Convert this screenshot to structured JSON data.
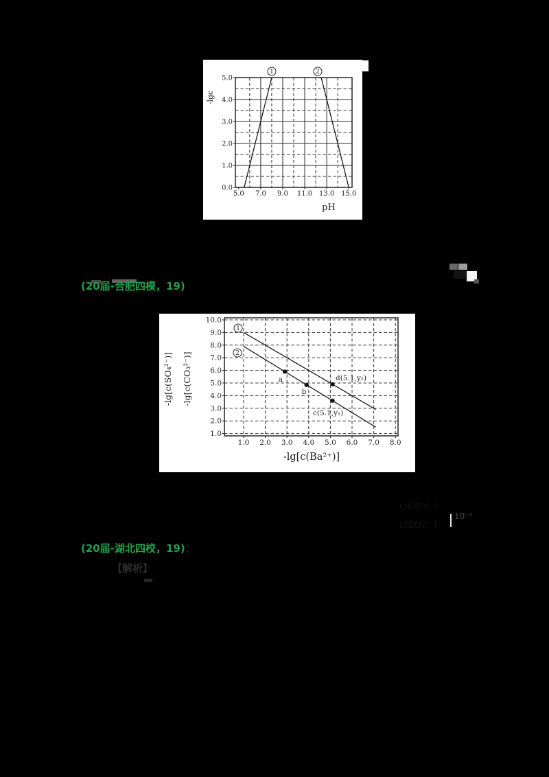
{
  "page": {
    "background": "#000000"
  },
  "annotations": {
    "green": "#22A04D",
    "source1": "(20届-合肥四模，19)",
    "source2": "(20届-湖北四校，19)",
    "source2_suffix": "：",
    "faint_heading": "【解析】",
    "frag2_numerator": "c(CO₃²⁻)",
    "frag2_denominator": "c(SO₄²⁻)",
    "frag2_right": "10⁻²"
  },
  "chart_data": [
    {
      "id": "chart1",
      "type": "line",
      "title": "",
      "xlabel": "pH",
      "ylabels": [
        "-lgc"
      ],
      "xlim": [
        4.7,
        15.3
      ],
      "ylim": [
        0,
        5
      ],
      "grid_on": true,
      "x_ticks": [
        {
          "v": 5.0,
          "label": "5.0"
        },
        {
          "v": 7.0,
          "label": "7.0"
        },
        {
          "v": 9.0,
          "label": "9.0"
        },
        {
          "v": 11.0,
          "label": "11.0"
        },
        {
          "v": 13.0,
          "label": "13.0"
        },
        {
          "v": 15.0,
          "label": "15.0"
        }
      ],
      "y_ticks": [
        {
          "v": 0.0,
          "label": "0.0"
        },
        {
          "v": 1.0,
          "label": "1.0"
        },
        {
          "v": 2.0,
          "label": "2.0"
        },
        {
          "v": 3.0,
          "label": "3.0"
        },
        {
          "v": 4.0,
          "label": "4.0"
        },
        {
          "v": 5.0,
          "label": "5.0"
        }
      ],
      "grid": {
        "x_solid": [
          7,
          9,
          11,
          13
        ],
        "x_dashed": [
          6,
          8,
          10,
          12,
          14
        ],
        "y_solid": [
          1,
          2,
          3,
          4
        ],
        "y_dashed": [
          0.5,
          1.5,
          2.5,
          3.5,
          4.5
        ]
      },
      "series": [
        {
          "name": "line-1",
          "points": [
            [
              5.5,
              0.0
            ],
            [
              8.0,
              5.0
            ]
          ]
        },
        {
          "name": "line-2",
          "points": [
            [
              12.5,
              5.0
            ],
            [
              15.0,
              0.0
            ]
          ]
        }
      ],
      "series_labels": [
        {
          "digit": "1"
        },
        {
          "digit": "2"
        }
      ],
      "points": []
    },
    {
      "id": "chart2",
      "type": "line",
      "title": "",
      "xlabel": "-lg[c(Ba²⁺)]",
      "ylabels": [
        "-lg[c(SO₄²⁻)]",
        "-lg[c(CO₃²⁻)]"
      ],
      "xlim": [
        0.1,
        8.1
      ],
      "ylim": [
        0.8,
        10.2
      ],
      "grid_on": true,
      "x_ticks": [
        {
          "v": 1.0,
          "label": "1.0"
        },
        {
          "v": 2.0,
          "label": "2.0"
        },
        {
          "v": 3.0,
          "label": "3.0"
        },
        {
          "v": 4.0,
          "label": "4.0"
        },
        {
          "v": 5.0,
          "label": "5.0"
        },
        {
          "v": 6.0,
          "label": "6.0"
        },
        {
          "v": 7.0,
          "label": "7.0"
        },
        {
          "v": 8.0,
          "label": "8.0"
        }
      ],
      "y_ticks": [
        {
          "v": 1.0,
          "label": "1.0"
        },
        {
          "v": 2.0,
          "label": "2.0"
        },
        {
          "v": 3.0,
          "label": "3.0"
        },
        {
          "v": 4.0,
          "label": "4.0"
        },
        {
          "v": 5.0,
          "label": "5.0"
        },
        {
          "v": 6.0,
          "label": "6.0"
        },
        {
          "v": 7.0,
          "label": "7.0"
        },
        {
          "v": 8.0,
          "label": "8.0"
        },
        {
          "v": 9.0,
          "label": "9.0"
        },
        {
          "v": 10.0,
          "label": "10.0"
        }
      ],
      "grid": {
        "x_solid": [],
        "x_dashed": [
          1,
          2,
          3,
          4,
          5,
          6,
          7,
          8
        ],
        "y_solid": [],
        "y_dashed": [
          1,
          2,
          3,
          4,
          5,
          6,
          7,
          8,
          9,
          10
        ]
      },
      "series": [
        {
          "name": "line-1",
          "points": [
            [
              1.0,
              9.0
            ],
            [
              7.1,
              2.9
            ]
          ]
        },
        {
          "name": "line-2",
          "points": [
            [
              1.0,
              7.9
            ],
            [
              7.1,
              1.5
            ]
          ]
        }
      ],
      "series_labels": [
        {
          "digit": "1"
        },
        {
          "digit": "2"
        }
      ],
      "points": [
        {
          "x": 2.9,
          "y": 5.9,
          "label": "a"
        },
        {
          "x": 3.9,
          "y": 4.85,
          "label": "b"
        },
        {
          "x": 5.1,
          "y": 3.6,
          "label": "c(5.1,y₁)"
        },
        {
          "x": 5.1,
          "y": 4.9,
          "label": "d(5.1,y₂)"
        }
      ]
    }
  ]
}
